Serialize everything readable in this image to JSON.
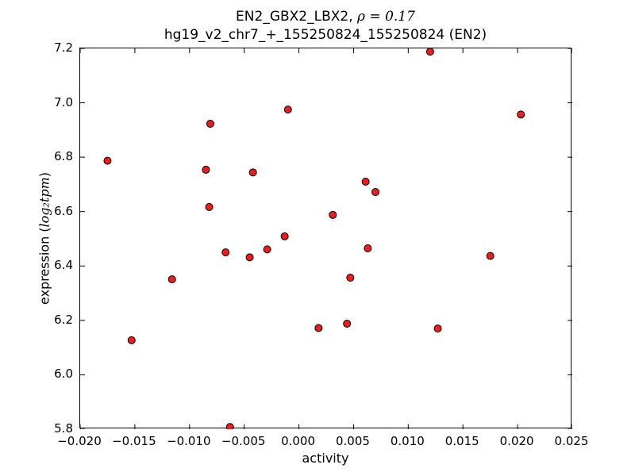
{
  "figure": {
    "title_line1_prefix": "EN2_GBX2_LBX2, ",
    "title_line1_math": "ρ = 0.17",
    "title_line2": "hg19_v2_chr7_+_155250824_155250824 (EN2)",
    "xlabel": "activity",
    "ylabel_prefix": "expression (",
    "ylabel_math": "log₂tpm",
    "ylabel_suffix": ")"
  },
  "chart_data": {
    "type": "scatter",
    "title": "EN2_GBX2_LBX2, ρ = 0.17",
    "subtitle": "hg19_v2_chr7_+_155250824_155250824 (EN2)",
    "xlabel": "activity",
    "ylabel": "expression (log₂ tpm)",
    "xlim": [
      -0.02,
      0.025
    ],
    "ylim": [
      5.8,
      7.2
    ],
    "grid": false,
    "legend": "none",
    "xticks": {
      "values": [
        -0.02,
        -0.015,
        -0.01,
        -0.005,
        0.0,
        0.005,
        0.01,
        0.015,
        0.02,
        0.025
      ],
      "labels": [
        "−0.020",
        "−0.015",
        "−0.010",
        "−0.005",
        "0.000",
        "0.005",
        "0.010",
        "0.015",
        "0.020",
        "0.025"
      ]
    },
    "yticks": {
      "values": [
        5.8,
        6.0,
        6.2,
        6.4,
        6.6,
        6.8,
        7.0,
        7.2
      ],
      "labels": [
        "5.8",
        "6.0",
        "6.2",
        "6.4",
        "6.6",
        "6.8",
        "7.0",
        "7.2"
      ]
    },
    "marker": {
      "fill": "#ee1c1c",
      "edge": "#000000",
      "radius": 4.5
    },
    "points": [
      [
        -0.0175,
        6.787
      ],
      [
        -0.0153,
        6.127
      ],
      [
        -0.0116,
        6.351
      ],
      [
        -0.0085,
        6.754
      ],
      [
        -0.0082,
        6.617
      ],
      [
        -0.0081,
        6.923
      ],
      [
        -0.0067,
        6.45
      ],
      [
        -0.0063,
        5.808
      ],
      [
        -0.0045,
        6.432
      ],
      [
        -0.0042,
        6.744
      ],
      [
        -0.0029,
        6.461
      ],
      [
        -0.0013,
        6.509
      ],
      [
        -0.001,
        6.975
      ],
      [
        0.0018,
        6.172
      ],
      [
        0.0031,
        6.588
      ],
      [
        0.0044,
        6.188
      ],
      [
        0.0047,
        6.357
      ],
      [
        0.0061,
        6.71
      ],
      [
        0.0063,
        6.465
      ],
      [
        0.007,
        6.672
      ],
      [
        0.012,
        7.188
      ],
      [
        0.0127,
        6.17
      ],
      [
        0.0175,
        6.437
      ],
      [
        0.0203,
        6.957
      ]
    ]
  }
}
